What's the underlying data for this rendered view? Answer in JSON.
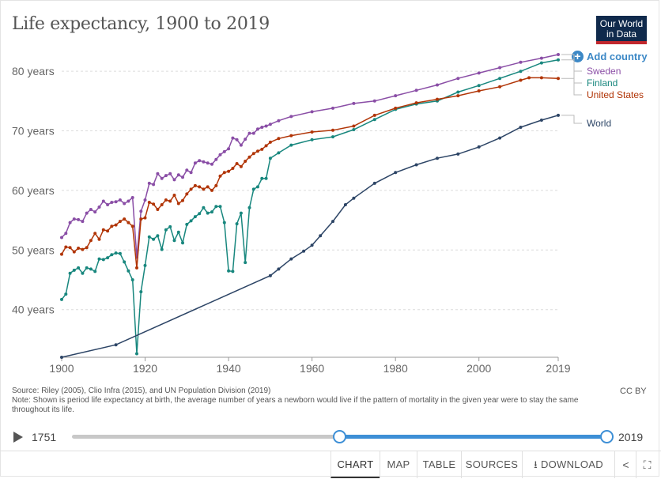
{
  "header": {
    "title": "Life expectancy, 1900 to 2019",
    "logo_line1": "Our World",
    "logo_line2": "in Data",
    "add_country_label": "Add country"
  },
  "chart_data": {
    "type": "line",
    "title": "Life expectancy, 1900 to 2019",
    "xlabel": "",
    "ylabel": "",
    "xlim": [
      1900,
      2019
    ],
    "ylim": [
      32,
      84
    ],
    "x_ticks": [
      1900,
      1920,
      1940,
      1960,
      1980,
      2000,
      2019
    ],
    "x_tick_labels": [
      "1900",
      "1920",
      "1940",
      "1960",
      "1980",
      "2000",
      "2019"
    ],
    "y_ticks": [
      40,
      50,
      60,
      70,
      80
    ],
    "y_tick_labels": [
      "40 years",
      "50 years",
      "60 years",
      "70 years",
      "80 years"
    ],
    "grid": "horizontal-dashed",
    "legend": "right-end-labels",
    "series": [
      {
        "name": "Sweden",
        "color": "#8a4ea6",
        "points": [
          [
            1900,
            52.1
          ],
          [
            1901,
            52.8
          ],
          [
            1902,
            54.6
          ],
          [
            1903,
            55.2
          ],
          [
            1904,
            55.1
          ],
          [
            1905,
            54.8
          ],
          [
            1906,
            56.2
          ],
          [
            1907,
            56.8
          ],
          [
            1908,
            56.4
          ],
          [
            1909,
            57.2
          ],
          [
            1910,
            58.2
          ],
          [
            1911,
            57.6
          ],
          [
            1912,
            58.0
          ],
          [
            1913,
            58.1
          ],
          [
            1914,
            58.4
          ],
          [
            1915,
            57.8
          ],
          [
            1916,
            58.2
          ],
          [
            1917,
            58.8
          ],
          [
            1918,
            48.8
          ],
          [
            1919,
            56.5
          ],
          [
            1920,
            58.4
          ],
          [
            1921,
            61.2
          ],
          [
            1922,
            61.0
          ],
          [
            1923,
            62.8
          ],
          [
            1924,
            62.0
          ],
          [
            1925,
            62.5
          ],
          [
            1926,
            62.8
          ],
          [
            1927,
            61.8
          ],
          [
            1928,
            62.6
          ],
          [
            1929,
            62.2
          ],
          [
            1930,
            63.4
          ],
          [
            1931,
            63.0
          ],
          [
            1932,
            64.6
          ],
          [
            1933,
            65.0
          ],
          [
            1934,
            64.8
          ],
          [
            1935,
            64.6
          ],
          [
            1936,
            64.4
          ],
          [
            1937,
            65.2
          ],
          [
            1938,
            66.0
          ],
          [
            1939,
            66.5
          ],
          [
            1940,
            67.0
          ],
          [
            1941,
            68.8
          ],
          [
            1942,
            68.5
          ],
          [
            1943,
            67.6
          ],
          [
            1944,
            68.6
          ],
          [
            1945,
            69.6
          ],
          [
            1946,
            69.6
          ],
          [
            1947,
            70.3
          ],
          [
            1948,
            70.6
          ],
          [
            1949,
            70.8
          ],
          [
            1950,
            71.1
          ],
          [
            1952,
            71.7
          ],
          [
            1955,
            72.4
          ],
          [
            1960,
            73.2
          ],
          [
            1965,
            73.8
          ],
          [
            1970,
            74.6
          ],
          [
            1975,
            75.0
          ],
          [
            1980,
            75.9
          ],
          [
            1985,
            76.8
          ],
          [
            1990,
            77.7
          ],
          [
            1995,
            78.8
          ],
          [
            2000,
            79.7
          ],
          [
            2005,
            80.6
          ],
          [
            2010,
            81.5
          ],
          [
            2015,
            82.2
          ],
          [
            2019,
            82.8
          ]
        ]
      },
      {
        "name": "Finland",
        "color": "#18877e",
        "points": [
          [
            1900,
            41.7
          ],
          [
            1901,
            42.6
          ],
          [
            1902,
            46.1
          ],
          [
            1903,
            46.6
          ],
          [
            1904,
            47.0
          ],
          [
            1905,
            46.1
          ],
          [
            1906,
            47.0
          ],
          [
            1907,
            46.8
          ],
          [
            1908,
            46.4
          ],
          [
            1909,
            48.5
          ],
          [
            1910,
            48.4
          ],
          [
            1911,
            48.7
          ],
          [
            1912,
            49.2
          ],
          [
            1913,
            49.5
          ],
          [
            1914,
            49.4
          ],
          [
            1915,
            48.0
          ],
          [
            1916,
            46.5
          ],
          [
            1917,
            45.0
          ],
          [
            1918,
            32.6
          ],
          [
            1919,
            43.0
          ],
          [
            1920,
            47.4
          ],
          [
            1921,
            52.2
          ],
          [
            1922,
            51.8
          ],
          [
            1923,
            52.4
          ],
          [
            1924,
            50.1
          ],
          [
            1925,
            53.4
          ],
          [
            1926,
            53.9
          ],
          [
            1927,
            51.6
          ],
          [
            1928,
            53.0
          ],
          [
            1929,
            51.2
          ],
          [
            1930,
            54.3
          ],
          [
            1931,
            54.9
          ],
          [
            1932,
            55.6
          ],
          [
            1933,
            56.1
          ],
          [
            1934,
            57.1
          ],
          [
            1935,
            56.2
          ],
          [
            1936,
            56.4
          ],
          [
            1937,
            57.3
          ],
          [
            1938,
            57.3
          ],
          [
            1939,
            54.6
          ],
          [
            1940,
            46.5
          ],
          [
            1941,
            46.4
          ],
          [
            1942,
            54.4
          ],
          [
            1943,
            56.2
          ],
          [
            1944,
            47.9
          ],
          [
            1945,
            57.1
          ],
          [
            1946,
            60.2
          ],
          [
            1947,
            60.6
          ],
          [
            1948,
            62.0
          ],
          [
            1949,
            62.0
          ],
          [
            1950,
            65.4
          ],
          [
            1952,
            66.3
          ],
          [
            1955,
            67.6
          ],
          [
            1960,
            68.5
          ],
          [
            1965,
            69.0
          ],
          [
            1970,
            70.2
          ],
          [
            1975,
            71.9
          ],
          [
            1980,
            73.6
          ],
          [
            1985,
            74.5
          ],
          [
            1990,
            75.0
          ],
          [
            1995,
            76.5
          ],
          [
            2000,
            77.6
          ],
          [
            2005,
            78.8
          ],
          [
            2010,
            80.0
          ],
          [
            2015,
            81.4
          ],
          [
            2019,
            81.9
          ]
        ]
      },
      {
        "name": "United States",
        "color": "#b13507",
        "points": [
          [
            1900,
            49.3
          ],
          [
            1901,
            50.5
          ],
          [
            1902,
            50.4
          ],
          [
            1903,
            49.7
          ],
          [
            1904,
            50.3
          ],
          [
            1905,
            50.1
          ],
          [
            1906,
            50.4
          ],
          [
            1907,
            51.6
          ],
          [
            1908,
            52.8
          ],
          [
            1909,
            51.8
          ],
          [
            1910,
            53.4
          ],
          [
            1911,
            53.2
          ],
          [
            1912,
            54.0
          ],
          [
            1913,
            54.2
          ],
          [
            1914,
            54.8
          ],
          [
            1915,
            55.2
          ],
          [
            1916,
            54.6
          ],
          [
            1917,
            54.0
          ],
          [
            1918,
            47.0
          ],
          [
            1919,
            55.2
          ],
          [
            1920,
            55.4
          ],
          [
            1921,
            58.0
          ],
          [
            1922,
            57.7
          ],
          [
            1923,
            56.8
          ],
          [
            1924,
            57.6
          ],
          [
            1925,
            58.4
          ],
          [
            1926,
            58.2
          ],
          [
            1927,
            59.2
          ],
          [
            1928,
            57.8
          ],
          [
            1929,
            58.3
          ],
          [
            1930,
            59.4
          ],
          [
            1931,
            60.2
          ],
          [
            1932,
            60.8
          ],
          [
            1933,
            60.6
          ],
          [
            1934,
            60.2
          ],
          [
            1935,
            60.6
          ],
          [
            1936,
            60.0
          ],
          [
            1937,
            60.8
          ],
          [
            1938,
            62.4
          ],
          [
            1939,
            63.0
          ],
          [
            1940,
            63.2
          ],
          [
            1941,
            63.7
          ],
          [
            1942,
            64.5
          ],
          [
            1943,
            64.0
          ],
          [
            1944,
            64.9
          ],
          [
            1945,
            65.6
          ],
          [
            1946,
            66.2
          ],
          [
            1947,
            66.6
          ],
          [
            1948,
            66.9
          ],
          [
            1949,
            67.5
          ],
          [
            1950,
            68.1
          ],
          [
            1952,
            68.7
          ],
          [
            1955,
            69.2
          ],
          [
            1960,
            69.8
          ],
          [
            1965,
            70.1
          ],
          [
            1970,
            70.8
          ],
          [
            1975,
            72.6
          ],
          [
            1980,
            73.8
          ],
          [
            1985,
            74.7
          ],
          [
            1990,
            75.3
          ],
          [
            1995,
            75.9
          ],
          [
            2000,
            76.7
          ],
          [
            2005,
            77.4
          ],
          [
            2010,
            78.5
          ],
          [
            2012,
            78.9
          ],
          [
            2015,
            78.9
          ],
          [
            2019,
            78.8
          ]
        ]
      },
      {
        "name": "World",
        "color": "#2d4566",
        "points": [
          [
            1900,
            32.0
          ],
          [
            1913,
            34.1
          ],
          [
            1950,
            45.7
          ],
          [
            1952,
            46.8
          ],
          [
            1955,
            48.5
          ],
          [
            1958,
            49.8
          ],
          [
            1960,
            50.8
          ],
          [
            1962,
            52.4
          ],
          [
            1965,
            54.8
          ],
          [
            1968,
            57.6
          ],
          [
            1970,
            58.7
          ],
          [
            1975,
            61.2
          ],
          [
            1980,
            63.0
          ],
          [
            1985,
            64.3
          ],
          [
            1990,
            65.4
          ],
          [
            1995,
            66.1
          ],
          [
            2000,
            67.3
          ],
          [
            2005,
            68.8
          ],
          [
            2010,
            70.6
          ],
          [
            2015,
            71.8
          ],
          [
            2019,
            72.6
          ]
        ]
      }
    ]
  },
  "footer": {
    "source": "Source: Riley (2005), Clio Infra (2015), and UN Population Division (2019)",
    "note": "Note: Shown is period life expectancy at birth, the average number of years a newborn would live if the pattern of mortality in the given year were to stay the same throughout its life.",
    "license": "CC BY"
  },
  "timeline": {
    "start_label": "1751",
    "end_label": "2019",
    "range_start_fraction": 0.5,
    "range_end_fraction": 1.0
  },
  "tabs": {
    "chart": "CHART",
    "map": "MAP",
    "table": "TABLE",
    "sources": "SOURCES",
    "download": "DOWNLOAD"
  },
  "icons": {
    "download": "download-icon",
    "share": "share-icon",
    "fullscreen": "fullscreen-icon",
    "play": "play-icon",
    "plus": "plus-circle-icon"
  }
}
